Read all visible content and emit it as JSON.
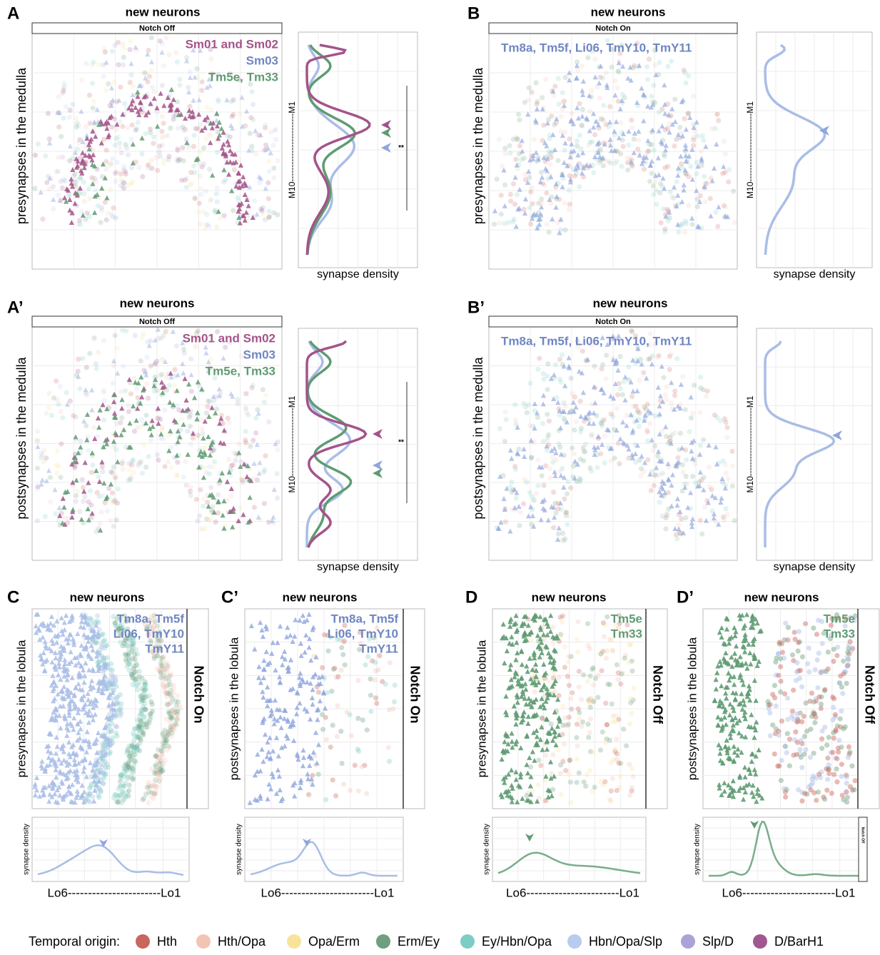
{
  "panels": [
    {
      "label": "A",
      "title": "new neurons",
      "strip": "Notch Off",
      "y_label": "presynapses in the medulla",
      "groups": [
        {
          "text": "Sm01 and Sm02",
          "color": "#a3548a"
        },
        {
          "text": "Sm03",
          "color": "#6f86c2"
        },
        {
          "text": "Tm5e, Tm33",
          "color": "#5f9b73"
        }
      ],
      "density_label": "synapse density",
      "density_axis": "M10------------------------M1",
      "significance": "**"
    },
    {
      "label": "B",
      "title": "new neurons",
      "strip": "Notch On",
      "y_label": "presynapses in the medulla",
      "groups": [
        {
          "text": "Tm8a, Tm5f, Li06, TmY10, TmY11",
          "color": "#6f86c2"
        }
      ],
      "density_label": "synapse density",
      "density_axis": "M10------------------------M1"
    },
    {
      "label": "A’",
      "title": "new neurons",
      "strip": "Notch Off",
      "y_label": "postsynapses in the medulla",
      "groups": [
        {
          "text": "Sm01 and Sm02",
          "color": "#a3548a"
        },
        {
          "text": "Sm03",
          "color": "#6f86c2"
        },
        {
          "text": "Tm5e, Tm33",
          "color": "#5f9b73"
        }
      ],
      "density_label": "synapse density",
      "density_axis": "M10------------------------M1",
      "significance": "**"
    },
    {
      "label": "B’",
      "title": "new neurons",
      "strip": "Notch On",
      "y_label": "postsynapses in the medulla",
      "groups": [
        {
          "text": "Tm8a, Tm5f, Li06, TmY10, TmY11",
          "color": "#6f86c2"
        }
      ],
      "density_label": "synapse density",
      "density_axis": "M10------------------------M1"
    },
    {
      "label": "C",
      "title": "new neurons",
      "strip": "Notch On",
      "y_label": "presynapses in the lobula",
      "groups": [
        {
          "text": "Tm8a, Tm5f",
          "color": "#6f86c2"
        },
        {
          "text": "Li06, TmY10",
          "color": "#6f86c2"
        },
        {
          "text": "TmY11",
          "color": "#6f86c2"
        }
      ],
      "density_label": "synapse density",
      "density_axis": "Lo6-----------------------Lo1"
    },
    {
      "label": "C’",
      "title": "new neurons",
      "strip": "Notch On",
      "y_label": "postsynapses in the lobula",
      "groups": [
        {
          "text": "Tm8a, Tm5f",
          "color": "#6f86c2"
        },
        {
          "text": "Li06, TmY10",
          "color": "#6f86c2"
        },
        {
          "text": "TmY11",
          "color": "#6f86c2"
        }
      ],
      "density_label": "synapse density",
      "density_axis": "Lo6-----------------------Lo1"
    },
    {
      "label": "D",
      "title": "new neurons",
      "strip": "Notch Off",
      "y_label": "presynapses in the lobula",
      "groups": [
        {
          "text": "Tm5e",
          "color": "#5f9b73"
        },
        {
          "text": "Tm33",
          "color": "#5f9b73"
        }
      ],
      "density_label": "synapse density",
      "density_axis": "Lo6-----------------------Lo1"
    },
    {
      "label": "D’",
      "title": "new neurons",
      "strip": "Notch Off",
      "y_label": "postsynapses in the lobula",
      "groups": [
        {
          "text": "Tm5e",
          "color": "#5f9b73"
        },
        {
          "text": "Tm33",
          "color": "#5f9b73"
        }
      ],
      "density_label": "synapse density",
      "density_axis": "Lo6-----------------------Lo1"
    }
  ],
  "legend": {
    "title": "Temporal origin:",
    "items": [
      {
        "name": "Hth",
        "color": "#c9665d"
      },
      {
        "name": "Hth/Opa",
        "color": "#f2c4b4"
      },
      {
        "name": "Opa/Erm",
        "color": "#f8e39a"
      },
      {
        "name": "Erm/Ey",
        "color": "#6e9f7f"
      },
      {
        "name": "Ey/Hbn/Opa",
        "color": "#7dcdc5"
      },
      {
        "name": "Hbn/Opa/Slp",
        "color": "#b9cbef"
      },
      {
        "name": "Slp/D",
        "color": "#a9a3d6"
      },
      {
        "name": "D/BarH1",
        "color": "#a0578f"
      }
    ]
  }
}
